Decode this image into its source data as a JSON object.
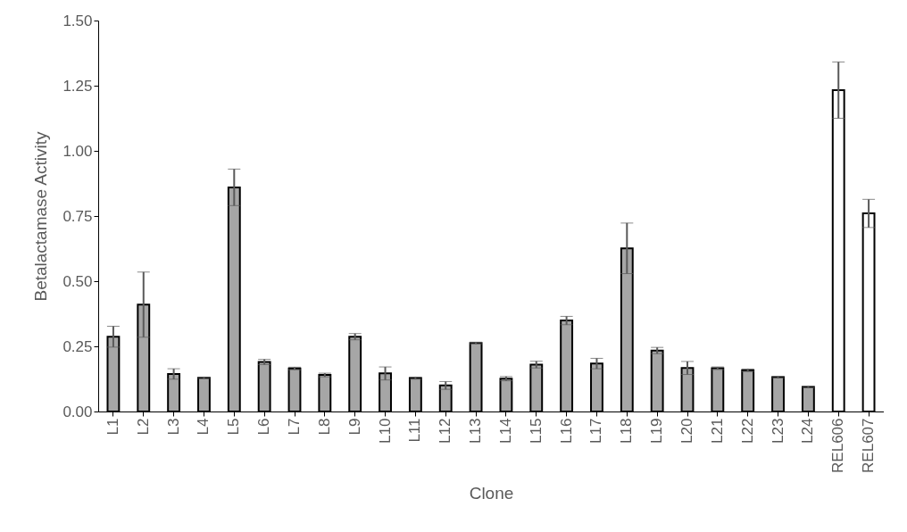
{
  "chart_data": {
    "type": "bar",
    "xlabel": "Clone",
    "ylabel": "Betalactamase Activity",
    "categories": [
      "L1",
      "L2",
      "L3",
      "L4",
      "L5",
      "L6",
      "L7",
      "L8",
      "L9",
      "L10",
      "L11",
      "L12",
      "L13",
      "L14",
      "L15",
      "L16",
      "L17",
      "L18",
      "L19",
      "L20",
      "L21",
      "L22",
      "L23",
      "L24",
      "REL606",
      "REL607"
    ],
    "values": [
      0.287,
      0.41,
      0.144,
      0.129,
      0.86,
      0.19,
      0.165,
      0.14,
      0.287,
      0.146,
      0.128,
      0.1,
      0.263,
      0.126,
      0.18,
      0.349,
      0.184,
      0.626,
      0.234,
      0.167,
      0.166,
      0.158,
      0.132,
      0.094,
      1.233,
      0.76
    ],
    "errors": [
      0.04,
      0.125,
      0.02,
      0.003,
      0.07,
      0.01,
      0.005,
      0.007,
      0.012,
      0.025,
      0.004,
      0.015,
      0.003,
      0.008,
      0.013,
      0.016,
      0.02,
      0.097,
      0.012,
      0.025,
      0.005,
      0.005,
      0.003,
      0.003,
      0.108,
      0.054
    ],
    "colors": [
      "#a6a6a6",
      "#a6a6a6",
      "#a6a6a6",
      "#a6a6a6",
      "#a6a6a6",
      "#a6a6a6",
      "#a6a6a6",
      "#a6a6a6",
      "#a6a6a6",
      "#a6a6a6",
      "#a6a6a6",
      "#a6a6a6",
      "#a6a6a6",
      "#a6a6a6",
      "#a6a6a6",
      "#a6a6a6",
      "#a6a6a6",
      "#a6a6a6",
      "#a6a6a6",
      "#a6a6a6",
      "#a6a6a6",
      "#a6a6a6",
      "#a6a6a6",
      "#a6a6a6",
      "#ffffff",
      "#ffffff"
    ],
    "ylim": [
      0,
      1.5
    ],
    "yticks": [
      {
        "value": 0,
        "label": "0.00"
      },
      {
        "value": 0.25,
        "label": "0.25"
      },
      {
        "value": 0.5,
        "label": "0.50"
      },
      {
        "value": 0.75,
        "label": "0.75"
      },
      {
        "value": 1,
        "label": "1.00"
      },
      {
        "value": 1.25,
        "label": "1.25"
      },
      {
        "value": 1.5,
        "label": "1.50"
      }
    ],
    "grid": false
  }
}
